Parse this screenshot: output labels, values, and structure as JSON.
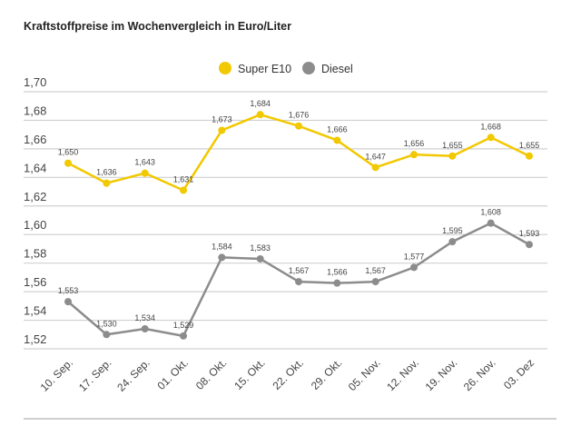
{
  "chart_data": {
    "type": "line",
    "title": "Kraftstoffpreise im Wochenvergleich in Euro/Liter",
    "categories": [
      "10. Sep.",
      "17. Sep.",
      "24. Sep.",
      "01. Okt.",
      "08. Okt.",
      "15. Okt.",
      "22. Okt.",
      "29. Okt.",
      "05. Nov.",
      "12. Nov.",
      "19. Nov.",
      "26. Nov.",
      "03. Dez"
    ],
    "series": [
      {
        "name": "Super E10",
        "color": "#f2c800",
        "values": [
          1.65,
          1.636,
          1.643,
          1.631,
          1.673,
          1.684,
          1.676,
          1.666,
          1.647,
          1.656,
          1.655,
          1.668,
          1.655
        ],
        "labels": [
          "1,650",
          "1,636",
          "1,643",
          "1,631",
          "1,673",
          "1,684",
          "1,676",
          "1,666",
          "1,647",
          "1,656",
          "1,655",
          "1,668",
          "1,655"
        ]
      },
      {
        "name": "Diesel",
        "color": "#8c8c8c",
        "values": [
          1.553,
          1.53,
          1.534,
          1.529,
          1.584,
          1.583,
          1.567,
          1.566,
          1.567,
          1.577,
          1.595,
          1.608,
          1.593
        ],
        "labels": [
          "1,553",
          "1,530",
          "1,534",
          "1,529",
          "1,584",
          "1,583",
          "1,567",
          "1,566",
          "1,567",
          "1,577",
          "1,595",
          "1,608",
          "1,593"
        ]
      }
    ],
    "ylim": [
      1.52,
      1.7
    ],
    "yticks": [
      "1,52",
      "1,54",
      "1,56",
      "1,58",
      "1,60",
      "1,62",
      "1,64",
      "1,66",
      "1,68",
      "1,70"
    ],
    "grid": true,
    "legend": "top-center"
  }
}
